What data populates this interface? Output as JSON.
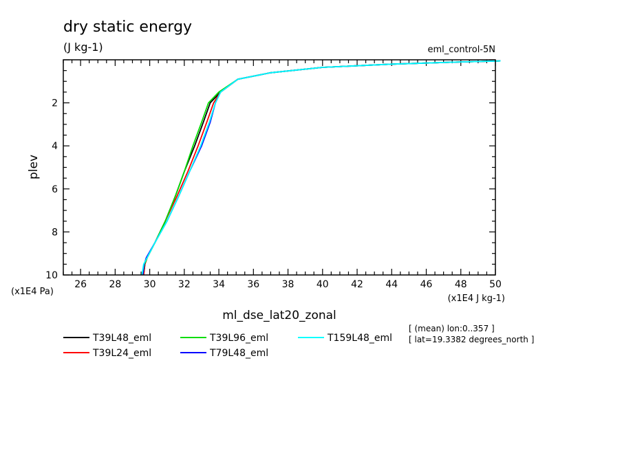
{
  "chart_data": {
    "type": "line",
    "title": "dry static energy",
    "units": "(J kg-1)",
    "experiment": "eml_control-5N",
    "xlabel": "ml_dse_lat20_zonal",
    "ylabel": "plev",
    "x_units": "(x1E4 J kg-1)",
    "y_units": "(x1E4 Pa)",
    "xlim": [
      25,
      50
    ],
    "ylim": [
      10,
      0
    ],
    "y_inverted": true,
    "x_ticks": [
      26,
      28,
      30,
      32,
      34,
      36,
      38,
      40,
      42,
      44,
      46,
      48,
      50
    ],
    "y_ticks": [
      2,
      4,
      6,
      8,
      10
    ],
    "grid": false,
    "legend_position": "bottom",
    "notes": [
      "[ (mean) lon:0..357 ]",
      "[ lat=19.3382 degrees_north ]"
    ],
    "series": [
      {
        "name": "T39L48_eml",
        "color": "#000000",
        "x": [
          29.65,
          29.72,
          29.85,
          30.3,
          30.9,
          31.5,
          32.0,
          32.6,
          33.1,
          33.5,
          34.1,
          35.1,
          37.0,
          40.0,
          44.0,
          48.0,
          50.3
        ],
        "y": [
          10.0,
          9.5,
          9.2,
          8.5,
          7.5,
          6.3,
          5.2,
          4.0,
          2.9,
          2.0,
          1.5,
          0.9,
          0.6,
          0.35,
          0.2,
          0.1,
          0.05
        ]
      },
      {
        "name": "T39L24_eml",
        "color": "#ff0000",
        "x": [
          29.65,
          29.72,
          29.85,
          30.3,
          30.9,
          31.6,
          32.2,
          32.8,
          33.3,
          33.7,
          34.1,
          35.1,
          37.0,
          40.0,
          44.0,
          48.0,
          50.3
        ],
        "y": [
          10.0,
          9.5,
          9.2,
          8.5,
          7.5,
          6.3,
          5.2,
          4.0,
          2.9,
          2.0,
          1.5,
          0.9,
          0.6,
          0.35,
          0.2,
          0.1,
          0.05
        ]
      },
      {
        "name": "T39L96_eml",
        "color": "#00dd00",
        "x": [
          29.6,
          29.7,
          29.85,
          30.3,
          30.9,
          31.5,
          32.0,
          32.5,
          33.0,
          33.4,
          34.0,
          35.1,
          37.0,
          40.0,
          44.0,
          48.0,
          50.3
        ],
        "y": [
          10.0,
          9.5,
          9.2,
          8.5,
          7.5,
          6.3,
          5.2,
          4.0,
          2.9,
          2.0,
          1.5,
          0.9,
          0.6,
          0.35,
          0.2,
          0.1,
          0.05
        ]
      },
      {
        "name": "T79L48_eml",
        "color": "#0000ff",
        "x": [
          29.6,
          29.68,
          29.8,
          30.3,
          31.0,
          31.7,
          32.3,
          33.0,
          33.5,
          33.8,
          34.1,
          35.1,
          37.0,
          40.0,
          44.0,
          48.0,
          50.3
        ],
        "y": [
          10.0,
          9.5,
          9.2,
          8.5,
          7.5,
          6.3,
          5.2,
          4.0,
          2.9,
          2.0,
          1.5,
          0.9,
          0.6,
          0.35,
          0.2,
          0.1,
          0.05
        ]
      },
      {
        "name": "T159L48_eml",
        "color": "#00ffff",
        "x": [
          29.55,
          29.65,
          29.85,
          30.3,
          31.0,
          31.7,
          32.3,
          32.95,
          33.45,
          33.8,
          34.1,
          35.1,
          37.0,
          40.0,
          44.0,
          48.0,
          50.3
        ],
        "y": [
          10.0,
          9.5,
          9.2,
          8.5,
          7.5,
          6.3,
          5.2,
          4.0,
          2.9,
          2.0,
          1.5,
          0.9,
          0.6,
          0.35,
          0.2,
          0.1,
          0.05
        ]
      }
    ]
  }
}
